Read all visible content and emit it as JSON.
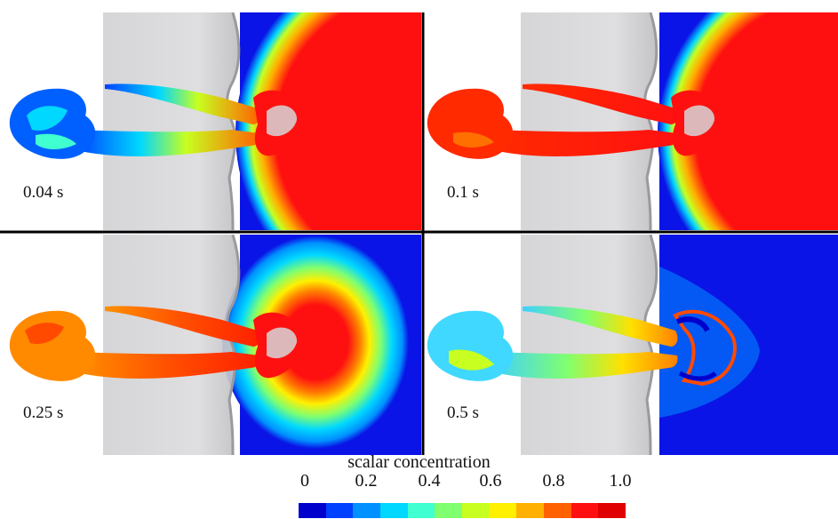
{
  "panels": [
    {
      "label": "0.04 s",
      "inlet_state": "low"
    },
    {
      "label": "0.1 s",
      "inlet_state": "high"
    },
    {
      "label": "0.25 s",
      "inlet_state": "mid-high"
    },
    {
      "label": "0.5 s",
      "inlet_state": "mixed"
    }
  ],
  "colorbar": {
    "title": "scalar concentration",
    "ticks": [
      "0",
      "0.2",
      "0.4",
      "0.6",
      "0.8",
      "1.0"
    ],
    "range": [
      0,
      1.0
    ],
    "colors": [
      "#0000cc",
      "#0040ff",
      "#0090ff",
      "#00d8ff",
      "#40ffd0",
      "#80ff70",
      "#c8ff20",
      "#fff000",
      "#ffb000",
      "#ff6000",
      "#ff1010",
      "#e00000"
    ]
  },
  "colors": {
    "background_flow": "#0a14e6",
    "plume_core": "#ff1010",
    "face": "#d6d6d8",
    "face_edge": "#9a9a9e",
    "divider": "#000000"
  }
}
